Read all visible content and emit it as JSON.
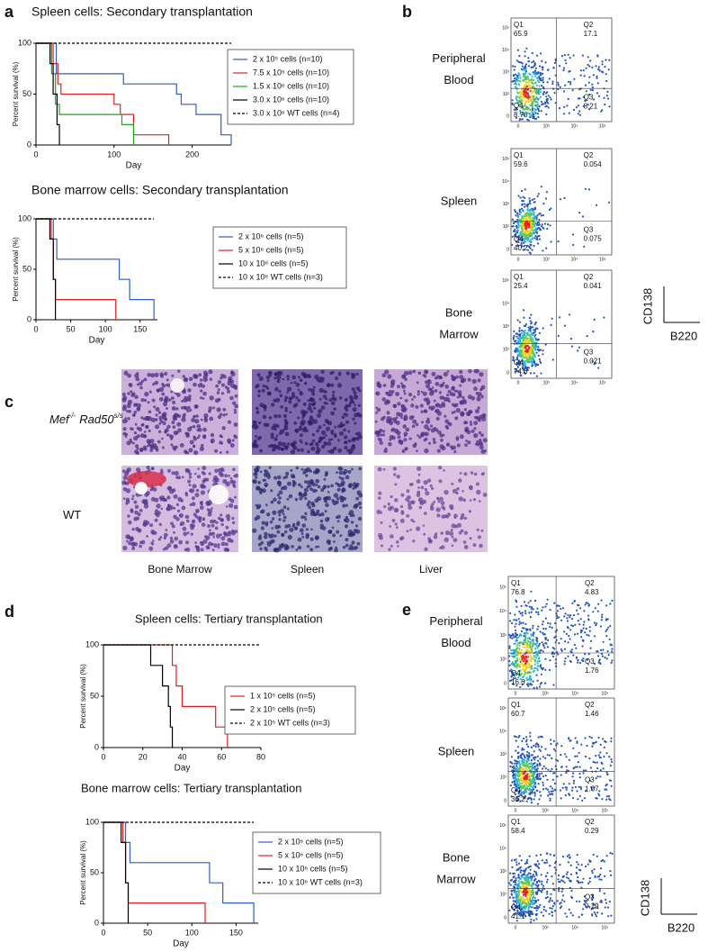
{
  "panel_letters": [
    "a",
    "b",
    "c",
    "d",
    "e"
  ],
  "chart_data": [
    {
      "type": "line",
      "step": true,
      "title": "Spleen cells: Secondary transplantation",
      "xlabel": "Day",
      "ylabel": "Percent survival (%)",
      "xlim": [
        0,
        250
      ],
      "xticks": [
        0,
        100,
        200
      ],
      "ylim": [
        0,
        100
      ],
      "yticks": [
        0,
        50,
        100
      ],
      "series": [
        {
          "name": "2 x 10⁵ cells (n=10)",
          "color": "#2f5fc4",
          "x": [
            0,
            26,
            112,
            180,
            186,
            205,
            237,
            250
          ],
          "values": [
            100,
            70,
            60,
            50,
            40,
            30,
            10,
            0
          ]
        },
        {
          "name": "7.5 x 10⁵ cells (n=10)",
          "color": "#e02020",
          "x": [
            0,
            22,
            28,
            32,
            100,
            108,
            125,
            170
          ],
          "values": [
            100,
            80,
            60,
            50,
            40,
            30,
            10,
            0
          ]
        },
        {
          "name": "1.5 x 10⁶ cells (n=10)",
          "color": "#22a022",
          "x": [
            0,
            20,
            25,
            30,
            110,
            125
          ],
          "values": [
            100,
            70,
            40,
            30,
            20,
            0
          ]
        },
        {
          "name": "3.0 x 10⁶ cells (n=10)",
          "color": "#000000",
          "x": [
            0,
            18,
            22,
            27,
            30
          ],
          "values": [
            100,
            80,
            50,
            20,
            0
          ]
        },
        {
          "name": "3.0 x 10⁶ WT cells (n=4)",
          "color": "#000000",
          "dash": true,
          "x": [
            0,
            250
          ],
          "values": [
            100,
            100
          ]
        }
      ]
    },
    {
      "type": "line",
      "step": true,
      "title": "Bone marrow cells: Secondary transplantation",
      "xlabel": "Day",
      "ylabel": "Percent survival (%)",
      "xlim": [
        0,
        175
      ],
      "xticks": [
        0,
        50,
        100,
        150
      ],
      "ylim": [
        0,
        100
      ],
      "yticks": [
        0,
        50,
        100
      ],
      "series": [
        {
          "name": "2 x 10⁶ cells (n=5)",
          "color": "#2f5fc4",
          "x": [
            0,
            25,
            30,
            120,
            135,
            170
          ],
          "values": [
            100,
            80,
            60,
            40,
            20,
            0
          ]
        },
        {
          "name": "5 x 10⁶ cells (n=5)",
          "color": "#e02020",
          "x": [
            0,
            22,
            25,
            28,
            115
          ],
          "values": [
            100,
            80,
            40,
            20,
            0
          ]
        },
        {
          "name": "10 x 10⁶ cells (n=5)",
          "color": "#000000",
          "x": [
            0,
            20,
            25,
            28
          ],
          "values": [
            100,
            80,
            40,
            0
          ]
        },
        {
          "name": "10 x 10⁶ WT cells (n=3)",
          "color": "#000000",
          "dash": true,
          "x": [
            0,
            170
          ],
          "values": [
            100,
            100
          ]
        }
      ]
    },
    {
      "type": "line",
      "step": true,
      "title": "Spleen cells: Tertiary transplantation",
      "xlabel": "Day",
      "ylabel": "Percent survival (%)",
      "xlim": [
        0,
        80
      ],
      "xticks": [
        0,
        20,
        40,
        60,
        80
      ],
      "ylim": [
        0,
        100
      ],
      "yticks": [
        0,
        50,
        100
      ],
      "series": [
        {
          "name": "1 x 10⁵ cells (n=5)",
          "color": "#e02020",
          "x": [
            0,
            35,
            37,
            40,
            57,
            63
          ],
          "values": [
            100,
            80,
            60,
            40,
            20,
            0
          ]
        },
        {
          "name": "2 x 10⁵ cells (n=5)",
          "color": "#000000",
          "x": [
            0,
            24,
            30,
            33,
            34,
            35
          ],
          "values": [
            100,
            80,
            60,
            40,
            20,
            0
          ]
        },
        {
          "name": "2 x 10⁵ WT cells (n=3)",
          "color": "#000000",
          "dash": true,
          "x": [
            0,
            80
          ],
          "values": [
            100,
            100
          ]
        }
      ]
    },
    {
      "type": "line",
      "step": true,
      "title": "Bone marrow cells: Tertiary transplantation",
      "xlabel": "Day",
      "ylabel": "Percent survival (%)",
      "xlim": [
        0,
        175
      ],
      "xticks": [
        0,
        50,
        100,
        150
      ],
      "ylim": [
        0,
        100
      ],
      "yticks": [
        0,
        50,
        100
      ],
      "series": [
        {
          "name": "2 x 10⁶ cells (n=5)",
          "color": "#2f5fc4",
          "x": [
            0,
            25,
            30,
            120,
            135,
            170
          ],
          "values": [
            100,
            80,
            60,
            40,
            20,
            0
          ]
        },
        {
          "name": "5 x 10⁶ cells (n=5)",
          "color": "#e02020",
          "x": [
            0,
            22,
            25,
            28,
            115
          ],
          "values": [
            100,
            80,
            40,
            20,
            0
          ]
        },
        {
          "name": "10 x 10⁶ cells (n=5)",
          "color": "#000000",
          "x": [
            0,
            20,
            25,
            28
          ],
          "values": [
            100,
            80,
            40,
            0
          ]
        },
        {
          "name": "10 x 10⁶ WT cells (n=3)",
          "color": "#000000",
          "dash": true,
          "x": [
            0,
            170
          ],
          "values": [
            100,
            100
          ]
        }
      ]
    }
  ],
  "flow_axis_ticks": {
    "x": [
      "0",
      "10³",
      "10⁴",
      "10⁵"
    ],
    "y": [
      "0",
      "10²",
      "10³",
      "10⁴",
      "10⁵"
    ]
  },
  "flow_panels": [
    {
      "plots": [
        {
          "label": [
            "Peripheral",
            "Blood"
          ],
          "quadrants": [
            {
              "name": "Q1",
              "value": 65.9
            },
            {
              "name": "Q2",
              "value": 17.1
            },
            {
              "name": "Q3",
              "value": 8.21
            },
            {
              "name": "Q4",
              "value": 8.76
            }
          ]
        },
        {
          "label": [
            "Spleen"
          ],
          "quadrants": [
            {
              "name": "Q1",
              "value": 59.6
            },
            {
              "name": "Q2",
              "value": 0.054
            },
            {
              "name": "Q3",
              "value": 0.075
            },
            {
              "name": "Q4",
              "value": 40.2
            }
          ]
        },
        {
          "label": [
            "Bone",
            "Marrow"
          ],
          "quadrants": [
            {
              "name": "Q1",
              "value": 25.4
            },
            {
              "name": "Q2",
              "value": 0.041
            },
            {
              "name": "Q3",
              "value": 0.021
            },
            {
              "name": "Q4",
              "value": 74.6
            }
          ]
        }
      ],
      "scale_bar": {
        "y": "CD138",
        "x": "B220"
      }
    },
    {
      "plots": [
        {
          "label": [
            "Peripheral",
            "Blood"
          ],
          "quadrants": [
            {
              "name": "Q1",
              "value": 76.8
            },
            {
              "name": "Q2",
              "value": 4.83
            },
            {
              "name": "Q3",
              "value": 1.76
            },
            {
              "name": "Q4",
              "value": 16.6
            }
          ]
        },
        {
          "label": [
            "Spleen"
          ],
          "quadrants": [
            {
              "name": "Q1",
              "value": 60.7
            },
            {
              "name": "Q2",
              "value": 1.46
            },
            {
              "name": "Q3",
              "value": 1.67
            },
            {
              "name": "Q4",
              "value": 36.2
            }
          ]
        },
        {
          "label": [
            "Bone",
            "Marrow"
          ],
          "quadrants": [
            {
              "name": "Q1",
              "value": 58.4
            },
            {
              "name": "Q2",
              "value": 0.29
            },
            {
              "name": "Q3",
              "value": 0.19
            },
            {
              "name": "Q4",
              "value": 41.1
            }
          ]
        }
      ],
      "scale_bar": {
        "y": "CD138",
        "x": "B220"
      }
    }
  ],
  "histology": {
    "rows": [
      {
        "italic": true,
        "label": [
          {
            "text": "Mef",
            "sup": "-/-"
          },
          {
            "text": "Rad50",
            "sup": "s/s"
          }
        ]
      },
      {
        "label": [
          {
            "text": "WT"
          }
        ]
      }
    ],
    "columns": [
      "Bone Marrow",
      "Spleen",
      "Liver"
    ]
  }
}
